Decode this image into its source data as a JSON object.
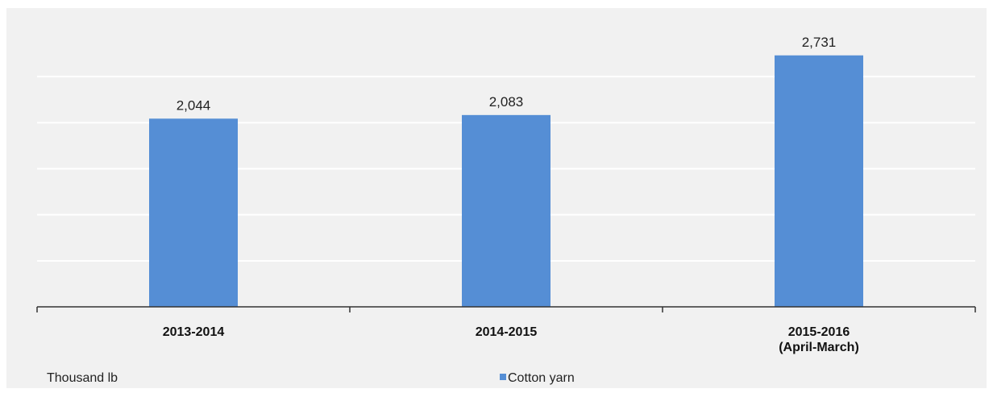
{
  "unit_label": "Thousand lb",
  "colors": {
    "bar": "#558ed5",
    "grid": "#ffffff",
    "panel": "#f1f1f1",
    "axis": "#333333"
  },
  "chart_data": {
    "type": "bar",
    "categories": [
      [
        "2013-2014"
      ],
      [
        "2014-2015"
      ],
      [
        "2015-2016",
        "(April-March)"
      ]
    ],
    "series": [
      {
        "name": "Cotton yarn",
        "values": [
          2044,
          2083,
          2731
        ],
        "labels": [
          "2,044",
          "2,083",
          "2,731"
        ]
      }
    ],
    "title": "",
    "xlabel": "",
    "ylabel": "Thousand lb",
    "ylim": [
      0,
      3000
    ],
    "gridlines": [
      500,
      1000,
      1500,
      2000,
      2500
    ],
    "grid": true,
    "legend_position": "bottom-center"
  }
}
